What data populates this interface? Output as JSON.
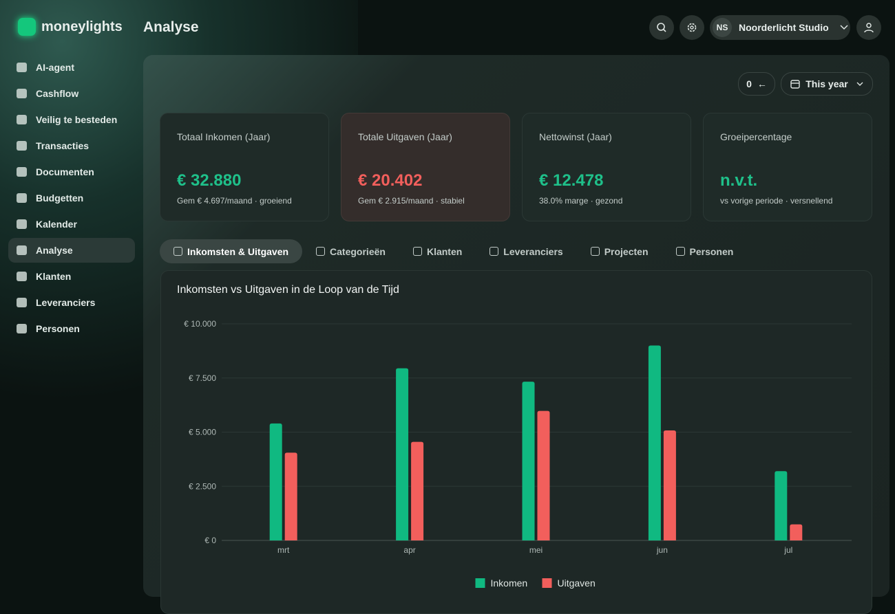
{
  "brand": "moneylights",
  "header": {
    "title": "Analyse",
    "workspace_initials": "NS",
    "workspace_name": "Noorderlicht Studio"
  },
  "nav": [
    "AI-agent",
    "Cashflow",
    "Veilig te besteden",
    "Transacties",
    "Documenten",
    "Budgetten",
    "Kalender",
    "Analyse",
    "Klanten",
    "Leveranciers",
    "Personen"
  ],
  "filters": {
    "badge": "0",
    "period": "This year"
  },
  "kpis": [
    {
      "label": "Totaal Inkomen (Jaar)",
      "value": "€ 32.880",
      "note": "Gem € 4.697/maand · groeiend"
    },
    {
      "label": "Totale Uitgaven (Jaar)",
      "value": "€ 20.402",
      "note": "Gem € 2.915/maand · stabiel"
    },
    {
      "label": "Nettowinst (Jaar)",
      "value": "€ 12.478",
      "note": "38.0% marge · gezond"
    },
    {
      "label": "Groeipercentage",
      "value": "n.v.t.",
      "note": "vs vorige periode · versnellend"
    }
  ],
  "tabs": [
    "Inkomsten & Uitgaven",
    "Categorieën",
    "Klanten",
    "Leveranciers",
    "Projecten",
    "Personen"
  ],
  "chart_data": {
    "type": "bar",
    "title": "Inkomsten vs Uitgaven in de Loop van de Tijd",
    "categories": [
      "mrt",
      "apr",
      "mei",
      "jun",
      "jul"
    ],
    "series": [
      {
        "name": "Inkomen",
        "color": "#10b981",
        "values": [
          5400,
          7950,
          7330,
          9000,
          3200
        ]
      },
      {
        "name": "Uitgaven",
        "color": "#f25f5c",
        "values": [
          4050,
          4550,
          5980,
          5080,
          742
        ]
      }
    ],
    "ylim": [
      0,
      10000
    ],
    "yticks": [
      {
        "value": 0,
        "label": "€ 0"
      },
      {
        "value": 2500,
        "label": "€ 2.500"
      },
      {
        "value": 5000,
        "label": "€ 5.000"
      },
      {
        "value": 7500,
        "label": "€ 7.500"
      },
      {
        "value": 10000,
        "label": "€ 10.000"
      }
    ],
    "grid": true,
    "legend": "bottom"
  }
}
